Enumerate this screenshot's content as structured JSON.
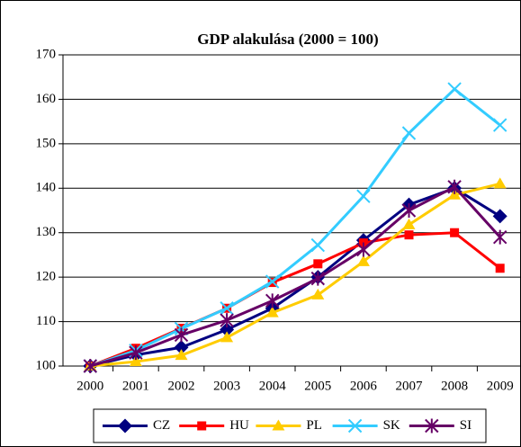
{
  "chart_data": {
    "type": "line",
    "title": "GDP alakulása (2000 = 100)",
    "categories": [
      "2000",
      "2001",
      "2002",
      "2003",
      "2004",
      "2005",
      "2006",
      "2007",
      "2008",
      "2009"
    ],
    "series": [
      {
        "name": "CZ",
        "color": "#000080",
        "marker": "diamond",
        "values": [
          100,
          102.5,
          104.2,
          108.2,
          113,
          120,
          128.3,
          136.3,
          140,
          133.7
        ]
      },
      {
        "name": "HU",
        "color": "#ff0000",
        "marker": "square",
        "values": [
          100,
          104,
          108.5,
          113,
          118.8,
          123,
          127.7,
          129.5,
          130,
          122
        ]
      },
      {
        "name": "PL",
        "color": "#ffcc00",
        "marker": "triangle",
        "values": [
          100,
          101,
          102.4,
          106.4,
          112,
          116,
          123.5,
          131.8,
          138.5,
          141
        ]
      },
      {
        "name": "SK",
        "color": "#33ccff",
        "marker": "x",
        "values": [
          100,
          103.5,
          108.4,
          113,
          119,
          127.2,
          138.2,
          152.4,
          162.3,
          154.2
        ]
      },
      {
        "name": "SI",
        "color": "#660066",
        "marker": "star",
        "values": [
          100,
          103,
          107,
          110.3,
          114.7,
          119.7,
          126.2,
          135,
          140.3,
          129
        ]
      }
    ],
    "ylim": [
      100,
      170
    ],
    "yticks": [
      100,
      110,
      120,
      130,
      140,
      150,
      160,
      170
    ],
    "grid": true,
    "legend": "bottom"
  }
}
